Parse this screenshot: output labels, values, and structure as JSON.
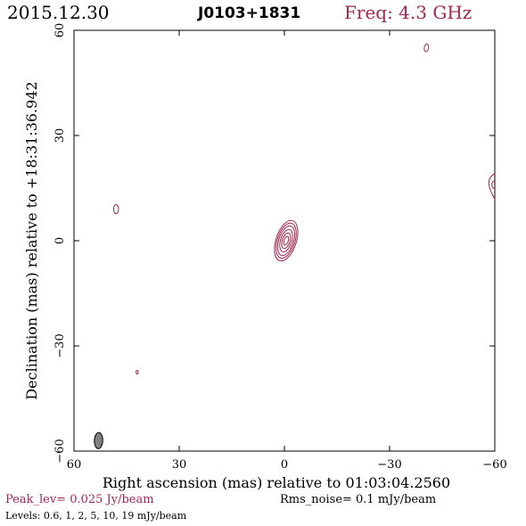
{
  "header": {
    "date": "2015.12.30",
    "source": "J0103+1831",
    "freq_label": "Freq: 4.3 GHz"
  },
  "footer": {
    "peak": "Peak_lev=  0.025 Jy/beam",
    "rms": "Rms_noise=   0.1 mJy/beam",
    "levels": "Levels: 0.6,    1,    2,    5,   10,   19 mJy/beam"
  },
  "colors": {
    "contour": "#a0284e",
    "accent_text": "#a0284e",
    "beam_fill": "#808080"
  },
  "chart_data": {
    "type": "contour",
    "xlabel": "Right ascension (mas) relative to 01:03:04.2560",
    "ylabel": "Declination (mas) relative to +18:31:36.942",
    "xlim": [
      60,
      -60
    ],
    "ylim": [
      -60,
      60
    ],
    "xticks": [
      60,
      30,
      0,
      -30,
      -60
    ],
    "yticks": [
      -60,
      -30,
      0,
      30,
      60
    ],
    "xtick_labels": [
      "60",
      "30",
      "0",
      "−30",
      "−60"
    ],
    "ytick_labels": [
      "−60",
      "−30",
      "0",
      "30",
      "60"
    ],
    "grid": false,
    "contour_levels_mJy": [
      0.6,
      1,
      2,
      5,
      10,
      19
    ],
    "peak_Jy_per_beam": 0.025,
    "rms_noise_mJy_per_beam": 0.1,
    "core": {
      "x": -0.5,
      "y": 0.0,
      "angle_deg": 72,
      "contours": [
        {
          "level": 0.6,
          "semi_major": 6.0,
          "semi_minor": 2.9
        },
        {
          "level": 1,
          "semi_major": 5.2,
          "semi_minor": 2.5
        },
        {
          "level": 2,
          "semi_major": 4.4,
          "semi_minor": 2.1
        },
        {
          "level": 5,
          "semi_major": 3.3,
          "semi_minor": 1.6
        },
        {
          "level": 10,
          "semi_major": 2.3,
          "semi_minor": 1.1
        },
        {
          "level": 19,
          "semi_major": 1.3,
          "semi_minor": 0.6
        }
      ]
    },
    "blobs": [
      {
        "x": 48.0,
        "y": 9.0,
        "semi_major": 1.3,
        "semi_minor": 0.7,
        "angle_deg": 90
      },
      {
        "x": -40.5,
        "y": 55.0,
        "semi_major": 1.1,
        "semi_minor": 0.6,
        "angle_deg": 80
      },
      {
        "x": 42.0,
        "y": -37.5,
        "semi_major": 0.5,
        "semi_minor": 0.3,
        "angle_deg": 90
      }
    ],
    "edge_feature": {
      "x": -60.0,
      "y": 15.5,
      "half_height": 3.6,
      "depth": 1.4
    },
    "beam": {
      "x": 53.0,
      "y": -57.0,
      "semi_major": 2.3,
      "semi_minor": 1.2,
      "angle_deg": 88
    }
  }
}
